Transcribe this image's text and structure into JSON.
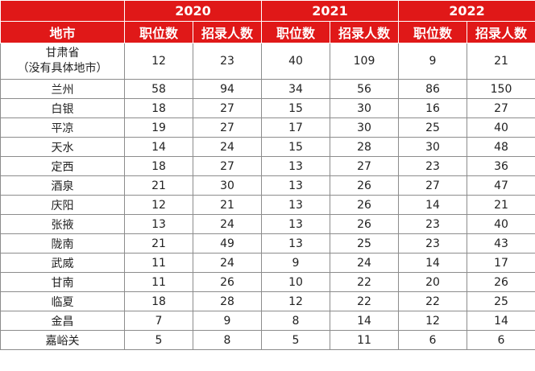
{
  "years": [
    "2020",
    "2021",
    "2022"
  ],
  "header": {
    "city": "地市",
    "positions": "职位数",
    "recruits": "招录人数"
  },
  "rows": [
    {
      "city_lines": [
        "甘肃省",
        "（没有具体地市）"
      ],
      "values": [
        "12",
        "23",
        "40",
        "109",
        "9",
        "21"
      ]
    },
    {
      "city": "兰州",
      "values": [
        "58",
        "94",
        "34",
        "56",
        "86",
        "150"
      ]
    },
    {
      "city": "白银",
      "values": [
        "18",
        "27",
        "15",
        "30",
        "16",
        "27"
      ]
    },
    {
      "city": "平凉",
      "values": [
        "19",
        "27",
        "17",
        "30",
        "25",
        "40"
      ]
    },
    {
      "city": "天水",
      "values": [
        "14",
        "24",
        "15",
        "28",
        "30",
        "48"
      ]
    },
    {
      "city": "定西",
      "values": [
        "18",
        "27",
        "13",
        "27",
        "23",
        "36"
      ]
    },
    {
      "city": "酒泉",
      "values": [
        "21",
        "30",
        "13",
        "26",
        "27",
        "47"
      ]
    },
    {
      "city": "庆阳",
      "values": [
        "12",
        "21",
        "13",
        "26",
        "14",
        "21"
      ]
    },
    {
      "city": "张掖",
      "values": [
        "13",
        "24",
        "13",
        "26",
        "23",
        "40"
      ]
    },
    {
      "city": "陇南",
      "values": [
        "21",
        "49",
        "13",
        "25",
        "23",
        "43"
      ]
    },
    {
      "city": "武威",
      "values": [
        "11",
        "24",
        "9",
        "24",
        "14",
        "17"
      ]
    },
    {
      "city": "甘南",
      "values": [
        "11",
        "26",
        "10",
        "22",
        "20",
        "26"
      ]
    },
    {
      "city": "临夏",
      "values": [
        "18",
        "28",
        "12",
        "22",
        "22",
        "25"
      ]
    },
    {
      "city": "金昌",
      "values": [
        "7",
        "9",
        "8",
        "14",
        "12",
        "14"
      ]
    },
    {
      "city": "嘉峪关",
      "values": [
        "5",
        "8",
        "5",
        "11",
        "6",
        "6"
      ]
    }
  ],
  "colors": {
    "header_bg": "#e01818",
    "header_text": "#ffffff",
    "border": "#8c8c8c"
  }
}
